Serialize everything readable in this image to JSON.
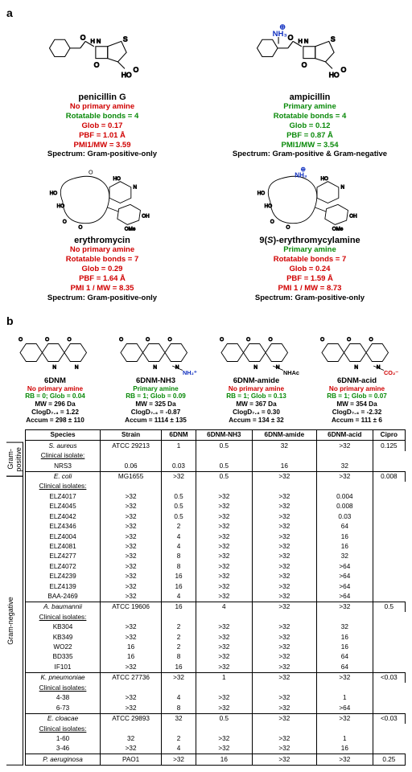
{
  "panelA": {
    "label": "a",
    "compounds": [
      {
        "name": "penicillin G",
        "amine": "No primary amine",
        "amine_color": "red",
        "rb": "Rotatable bonds = 4",
        "rb_color": "green",
        "glob": "Glob = 0.17",
        "glob_color": "red",
        "pbf": "PBF = 1.01 Å",
        "pbf_color": "red",
        "pmi": "PMI1/MW = 3.59",
        "pmi_color": "red",
        "spectrum": "Spectrum: Gram-positive-only"
      },
      {
        "name": "ampicillin",
        "amine": "Primary amine",
        "amine_color": "green",
        "rb": "Rotatable bonds = 4",
        "rb_color": "green",
        "glob": "Glob = 0.12",
        "glob_color": "green",
        "pbf": "PBF = 0.87 Å",
        "pbf_color": "green",
        "pmi": "PMI1/MW = 3.54",
        "pmi_color": "green",
        "spectrum": "Spectrum: Gram-positive & Gram-negative"
      },
      {
        "name": "erythromycin",
        "amine": "No primary amine",
        "amine_color": "red",
        "rb": "Rotatable bonds = 7",
        "rb_color": "red",
        "glob": "Glob = 0.29",
        "glob_color": "red",
        "pbf": "PBF = 1.64  Å",
        "pbf_color": "red",
        "pmi": "PMI 1 / MW = 8.35",
        "pmi_color": "red",
        "spectrum": "Spectrum: Gram-positive-only"
      },
      {
        "name": "9(S)-erythromycylamine",
        "amine": "Primary amine",
        "amine_color": "green",
        "rb": "Rotatable bonds = 7",
        "rb_color": "red",
        "glob": "Glob = 0.24",
        "glob_color": "red",
        "pbf": "PBF = 1.59 Å",
        "pbf_color": "red",
        "pmi": "PMI 1 / MW = 8.73",
        "pmi_color": "red",
        "spectrum": "Spectrum: Gram-positive-only"
      }
    ]
  },
  "panelB": {
    "label": "b",
    "compounds": [
      {
        "name": "6DNM",
        "amine": "No primary amine",
        "amine_color": "red",
        "rb": "RB = 0; Glob = 0.04",
        "rb_color": "green",
        "mw": "MW = 296 Da",
        "clogd": "ClogD₇.₄ = 1.22",
        "accum": "Accum = 298 ± 110",
        "suffix": ""
      },
      {
        "name": "6DNM-NH3",
        "amine": "Primary amine",
        "amine_color": "green",
        "rb": "RB = 1; Glob = 0.09",
        "rb_color": "green",
        "mw": "MW = 325 Da",
        "clogd": "ClogD₇.₄ = -0.87",
        "accum": "Accum = 1114 ± 135",
        "suffix": "NH₂⁺",
        "suffix_color": "#1030c0"
      },
      {
        "name": "6DNM-amide",
        "amine": "No primary amine",
        "amine_color": "red",
        "rb": "RB = 1; Glob = 0.13",
        "rb_color": "green",
        "mw": "MW = 367 Da",
        "clogd": "ClogD₇.₄ = 0.30",
        "accum": "Accum =  134 ± 32",
        "suffix": "NHAc",
        "suffix_color": "#000"
      },
      {
        "name": "6DNM-acid",
        "amine": "No primary amine",
        "amine_color": "red",
        "rb": "RB = 1; Glob = 0.07",
        "rb_color": "green",
        "mw": "MW = 354 Da",
        "clogd": "ClogD₇.₄ = -2.32",
        "accum": "Accum = 111 ± 6",
        "suffix": "CO₂⁻",
        "suffix_color": "#d00000"
      }
    ],
    "tableHeaders": [
      "Species",
      "Strain",
      "6DNM",
      "6DNM-NH3",
      "6DNM-amide",
      "6DNM-acid",
      "Cipro"
    ],
    "gramPosLabel": "Gram-positive",
    "gramNegLabel": "Gram-negative",
    "blocks": [
      {
        "gram": "pos",
        "species": "S. aureus",
        "rows": [
          {
            "strain": "ATCC 29213",
            "v": [
              "1",
              "0.5",
              "32",
              ">32",
              "0.125"
            ],
            "style": "dashed"
          },
          {
            "strain": "Clinical isolate:",
            "v": [
              "",
              "",
              "",
              "",
              ""
            ],
            "style": "clin"
          },
          {
            "strain": "NRS3",
            "v": [
              "0.06",
              "0.03",
              "0.5",
              "16",
              "32"
            ],
            "style": "last"
          }
        ]
      },
      {
        "gram": "neg",
        "species": "E. coli",
        "rows": [
          {
            "strain": "MG1655",
            "v": [
              ">32",
              "0.5",
              ">32",
              ">32",
              "0.008"
            ],
            "style": "dashed"
          },
          {
            "strain": "Clinical isolates:",
            "v": [
              "",
              "",
              "",
              "",
              ""
            ],
            "style": "clin"
          },
          {
            "strain": "ELZ4017",
            "v": [
              ">32",
              "0.5",
              ">32",
              ">32",
              "0.004"
            ],
            "style": "plain"
          },
          {
            "strain": "ELZ4045",
            "v": [
              ">32",
              "0.5",
              ">32",
              ">32",
              "0.008"
            ],
            "style": "plain"
          },
          {
            "strain": "ELZ4042",
            "v": [
              ">32",
              "0.5",
              ">32",
              ">32",
              "0.03"
            ],
            "style": "plain"
          },
          {
            "strain": "ELZ4346",
            "v": [
              ">32",
              "2",
              ">32",
              ">32",
              "64"
            ],
            "style": "plain"
          },
          {
            "strain": "ELZ4004",
            "v": [
              ">32",
              "4",
              ">32",
              ">32",
              "16"
            ],
            "style": "plain"
          },
          {
            "strain": "ELZ4081",
            "v": [
              ">32",
              "4",
              ">32",
              ">32",
              "16"
            ],
            "style": "plain"
          },
          {
            "strain": "ELZ4277",
            "v": [
              ">32",
              "8",
              ">32",
              ">32",
              "32"
            ],
            "style": "plain"
          },
          {
            "strain": "ELZ4072",
            "v": [
              ">32",
              "8",
              ">32",
              ">32",
              ">64"
            ],
            "style": "plain"
          },
          {
            "strain": "ELZ4239",
            "v": [
              ">32",
              "16",
              ">32",
              ">32",
              ">64"
            ],
            "style": "plain"
          },
          {
            "strain": "ELZ4139",
            "v": [
              ">32",
              "16",
              ">32",
              ">32",
              ">64"
            ],
            "style": "plain"
          },
          {
            "strain": "BAA-2469",
            "v": [
              ">32",
              "4",
              ">32",
              ">32",
              ">64"
            ],
            "style": "last"
          }
        ]
      },
      {
        "gram": "neg",
        "species": "A. baumannii",
        "rows": [
          {
            "strain": "ATCC 19606",
            "v": [
              "16",
              "4",
              ">32",
              ">32",
              "0.5"
            ],
            "style": "dashed"
          },
          {
            "strain": "Clinical isolates:",
            "v": [
              "",
              "",
              "",
              "",
              ""
            ],
            "style": "clin"
          },
          {
            "strain": "KB304",
            "v": [
              ">32",
              "2",
              ">32",
              ">32",
              "32"
            ],
            "style": "plain"
          },
          {
            "strain": "KB349",
            "v": [
              ">32",
              "2",
              ">32",
              ">32",
              "16"
            ],
            "style": "plain"
          },
          {
            "strain": "WO22",
            "v": [
              "16",
              "2",
              ">32",
              ">32",
              "16"
            ],
            "style": "plain"
          },
          {
            "strain": "BD335",
            "v": [
              "16",
              "8",
              ">32",
              ">32",
              "64"
            ],
            "style": "plain"
          },
          {
            "strain": "IF101",
            "v": [
              ">32",
              "16",
              ">32",
              ">32",
              "64"
            ],
            "style": "last"
          }
        ]
      },
      {
        "gram": "neg",
        "species": "K. pneumoniae",
        "rows": [
          {
            "strain": "ATCC 27736",
            "v": [
              ">32",
              "1",
              ">32",
              ">32",
              "<0.03"
            ],
            "style": "dashed"
          },
          {
            "strain": "Clinical isolates:",
            "v": [
              "",
              "",
              "",
              "",
              ""
            ],
            "style": "clin"
          },
          {
            "strain": "4-38",
            "v": [
              ">32",
              "4",
              ">32",
              ">32",
              "1"
            ],
            "style": "plain"
          },
          {
            "strain": "6-73",
            "v": [
              ">32",
              "8",
              ">32",
              ">32",
              ">64"
            ],
            "style": "last"
          }
        ]
      },
      {
        "gram": "neg",
        "species": "E. cloacae",
        "rows": [
          {
            "strain": "ATCC 29893",
            "v": [
              "32",
              "0.5",
              ">32",
              ">32",
              "<0.03"
            ],
            "style": "dashed"
          },
          {
            "strain": "Clinical isolates:",
            "v": [
              "",
              "",
              "",
              "",
              ""
            ],
            "style": "clin"
          },
          {
            "strain": "1-60",
            "v": [
              "32",
              "2",
              ">32",
              ">32",
              "1"
            ],
            "style": "plain"
          },
          {
            "strain": "3-46",
            "v": [
              ">32",
              "4",
              ">32",
              ">32",
              "16"
            ],
            "style": "last"
          }
        ]
      },
      {
        "gram": "neg",
        "species": "P. aeruginosa",
        "rows": [
          {
            "strain": "PAO1",
            "v": [
              ">32",
              "16",
              ">32",
              ">32",
              "0.25"
            ],
            "style": "single"
          }
        ]
      }
    ]
  },
  "colors": {
    "red": "#d00000",
    "green": "#0a8a0a",
    "blue": "#1030c0",
    "black": "#000000"
  }
}
